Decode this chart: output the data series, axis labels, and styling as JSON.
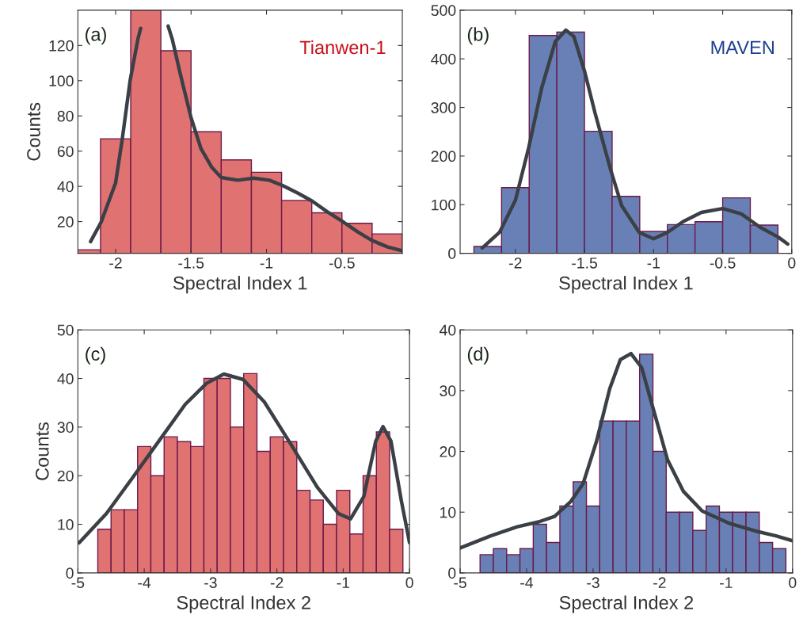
{
  "chart_data": [
    {
      "type": "histogram",
      "xlabel": "Spectral Index 1",
      "ylabel": "Counts",
      "annotations": [
        "(a)",
        "Tianwen-1"
      ],
      "bins": [
        -2.25,
        -2.1,
        -1.9,
        -1.7,
        -1.5,
        -1.3,
        -1.1,
        -0.9,
        -0.7,
        -0.5,
        -0.3,
        -0.1
      ],
      "values": [
        4,
        67,
        140,
        117,
        71,
        55,
        48,
        32,
        25,
        19,
        13
      ],
      "color": "#e07272",
      "series": [
        {
          "type": "line",
          "color": "#3b3f46",
          "x": [
            -2.166,
            -2.096,
            -2.0,
            -1.956,
            -1.904,
            -1.852,
            -1.834,
            -1.74,
            -1.652,
            -1.625,
            -1.573,
            -1.5,
            -1.434,
            -1.364,
            -1.3,
            -1.19,
            -1.085,
            -0.981,
            -0.894,
            -0.789,
            -0.697,
            -0.598,
            -0.49,
            -0.389,
            -0.301,
            -0.197,
            -0.101
          ],
          "values": [
            8.6,
            19.7,
            42,
            66.8,
            100,
            123.7,
            129.7,
            null,
            131,
            123.7,
            104.4,
            79,
            61.4,
            51,
            45,
            43.5,
            44.7,
            43.5,
            40.5,
            36,
            31.6,
            25.6,
            19.7,
            13.8,
            9.3,
            5.6,
            3.4
          ]
        }
      ],
      "xlim": [
        -2.25,
        -0.1
      ],
      "ylim": [
        2,
        140
      ],
      "xticks": [
        -2,
        -1.5,
        -1,
        -0.5
      ],
      "yticks": [
        20,
        40,
        60,
        80,
        100,
        120
      ]
    },
    {
      "type": "histogram",
      "xlabel": "Spectral Index 1",
      "annotations": [
        "(b)",
        "MAVEN"
      ],
      "bins": [
        -2.3,
        -2.1,
        -1.9,
        -1.7,
        -1.5,
        -1.3,
        -1.1,
        -0.9,
        -0.7,
        -0.5,
        -0.3,
        -0.1
      ],
      "values": [
        14,
        135,
        448,
        455,
        251,
        117,
        45,
        59,
        65,
        114,
        58
      ],
      "color": "#6880b5",
      "series": [
        {
          "type": "line",
          "color": "#3b3f46",
          "x": [
            -2.24,
            -2.115,
            -2.0,
            -1.904,
            -1.808,
            -1.712,
            -1.635,
            -1.577,
            -1.5,
            -1.423,
            -1.313,
            -1.231,
            -1.104,
            -1.0,
            -0.9,
            -0.788,
            -0.654,
            -0.5,
            -0.365,
            -0.231,
            -0.096,
            -0.029
          ],
          "values": [
            11,
            43,
            109,
            217,
            342,
            435,
            459,
            446,
            375,
            288,
            174,
            98,
            43,
            30,
            43,
            65,
            84,
            92,
            81,
            54,
            33,
            19
          ]
        }
      ],
      "xlim": [
        -2.4,
        0
      ],
      "ylim": [
        0,
        500
      ],
      "xticks": [
        -2,
        -1.5,
        -1,
        -0.5,
        0
      ],
      "yticks": [
        0,
        100,
        200,
        300,
        400,
        500
      ]
    },
    {
      "type": "histogram",
      "xlabel": "Spectral Index 2",
      "ylabel": "Counts",
      "annotations": [
        "(c)"
      ],
      "bins": [
        -4.7,
        -4.5,
        -4.3,
        -4.1,
        -3.9,
        -3.7,
        -3.5,
        -3.3,
        -3.1,
        -2.9,
        -2.7,
        -2.5,
        -2.3,
        -2.1,
        -1.9,
        -1.7,
        -1.5,
        -1.3,
        -1.1,
        -0.9,
        -0.7,
        -0.5,
        -0.3,
        -0.1
      ],
      "values": [
        9,
        13,
        13,
        26,
        20,
        28,
        27,
        26,
        40,
        40,
        30,
        41,
        25,
        28,
        27,
        17,
        15,
        10,
        17,
        8,
        20,
        29,
        9
      ],
      "color": "#e07272",
      "series": [
        {
          "type": "line",
          "color": "#3b3f46",
          "x": [
            -4.98,
            -4.57,
            -4.18,
            -3.78,
            -3.38,
            -3.06,
            -2.8,
            -2.51,
            -2.19,
            -1.79,
            -1.39,
            -1.07,
            -0.89,
            -0.69,
            -0.51,
            -0.4,
            -0.28,
            -0.12,
            0.0
          ],
          "values": [
            6.2,
            12.2,
            19.5,
            27.1,
            34.7,
            39,
            40.9,
            39.8,
            35.2,
            26.5,
            17.6,
            12.2,
            11.1,
            15.7,
            27.1,
            30.1,
            27.1,
            14.6,
            6.2
          ]
        }
      ],
      "xlim": [
        -5,
        0
      ],
      "ylim": [
        0,
        50
      ],
      "xticks": [
        -5,
        -4,
        -3,
        -2,
        -1,
        0
      ],
      "yticks": [
        0,
        10,
        20,
        30,
        40,
        50
      ]
    },
    {
      "type": "histogram",
      "xlabel": "Spectral Index 2",
      "annotations": [
        "(d)"
      ],
      "bins": [
        -4.7,
        -4.5,
        -4.3,
        -4.1,
        -3.9,
        -3.7,
        -3.5,
        -3.3,
        -3.1,
        -2.9,
        -2.7,
        -2.5,
        -2.3,
        -2.1,
        -1.9,
        -1.7,
        -1.5,
        -1.3,
        -1.1,
        -0.9,
        -0.7,
        -0.5,
        -0.3,
        -0.1
      ],
      "values": [
        3,
        4,
        3,
        4,
        8,
        5,
        11,
        15,
        11,
        25,
        25,
        25,
        36,
        20,
        10,
        10,
        7,
        11,
        10,
        10,
        10,
        5,
        4
      ],
      "color": "#6880b5",
      "series": [
        {
          "type": "line",
          "color": "#3b3f46",
          "x": [
            -5.0,
            -4.54,
            -4.14,
            -3.82,
            -3.58,
            -3.34,
            -3.15,
            -2.95,
            -2.75,
            -2.59,
            -2.43,
            -2.27,
            -2.08,
            -1.88,
            -1.64,
            -1.36,
            -0.96,
            -0.56,
            -0.25,
            0.0
          ],
          "values": [
            4.1,
            6.1,
            7.6,
            8.4,
            9.3,
            11.7,
            14.7,
            21.6,
            30.3,
            35.1,
            36.1,
            33.8,
            26.4,
            18.6,
            13.4,
            10.2,
            8.2,
            6.9,
            6.1,
            5.3
          ]
        }
      ],
      "xlim": [
        -5,
        0
      ],
      "ylim": [
        0,
        40
      ],
      "xticks": [
        -5,
        -4,
        -3,
        -2,
        -1,
        0
      ],
      "yticks": [
        0,
        10,
        20,
        30,
        40
      ]
    }
  ]
}
